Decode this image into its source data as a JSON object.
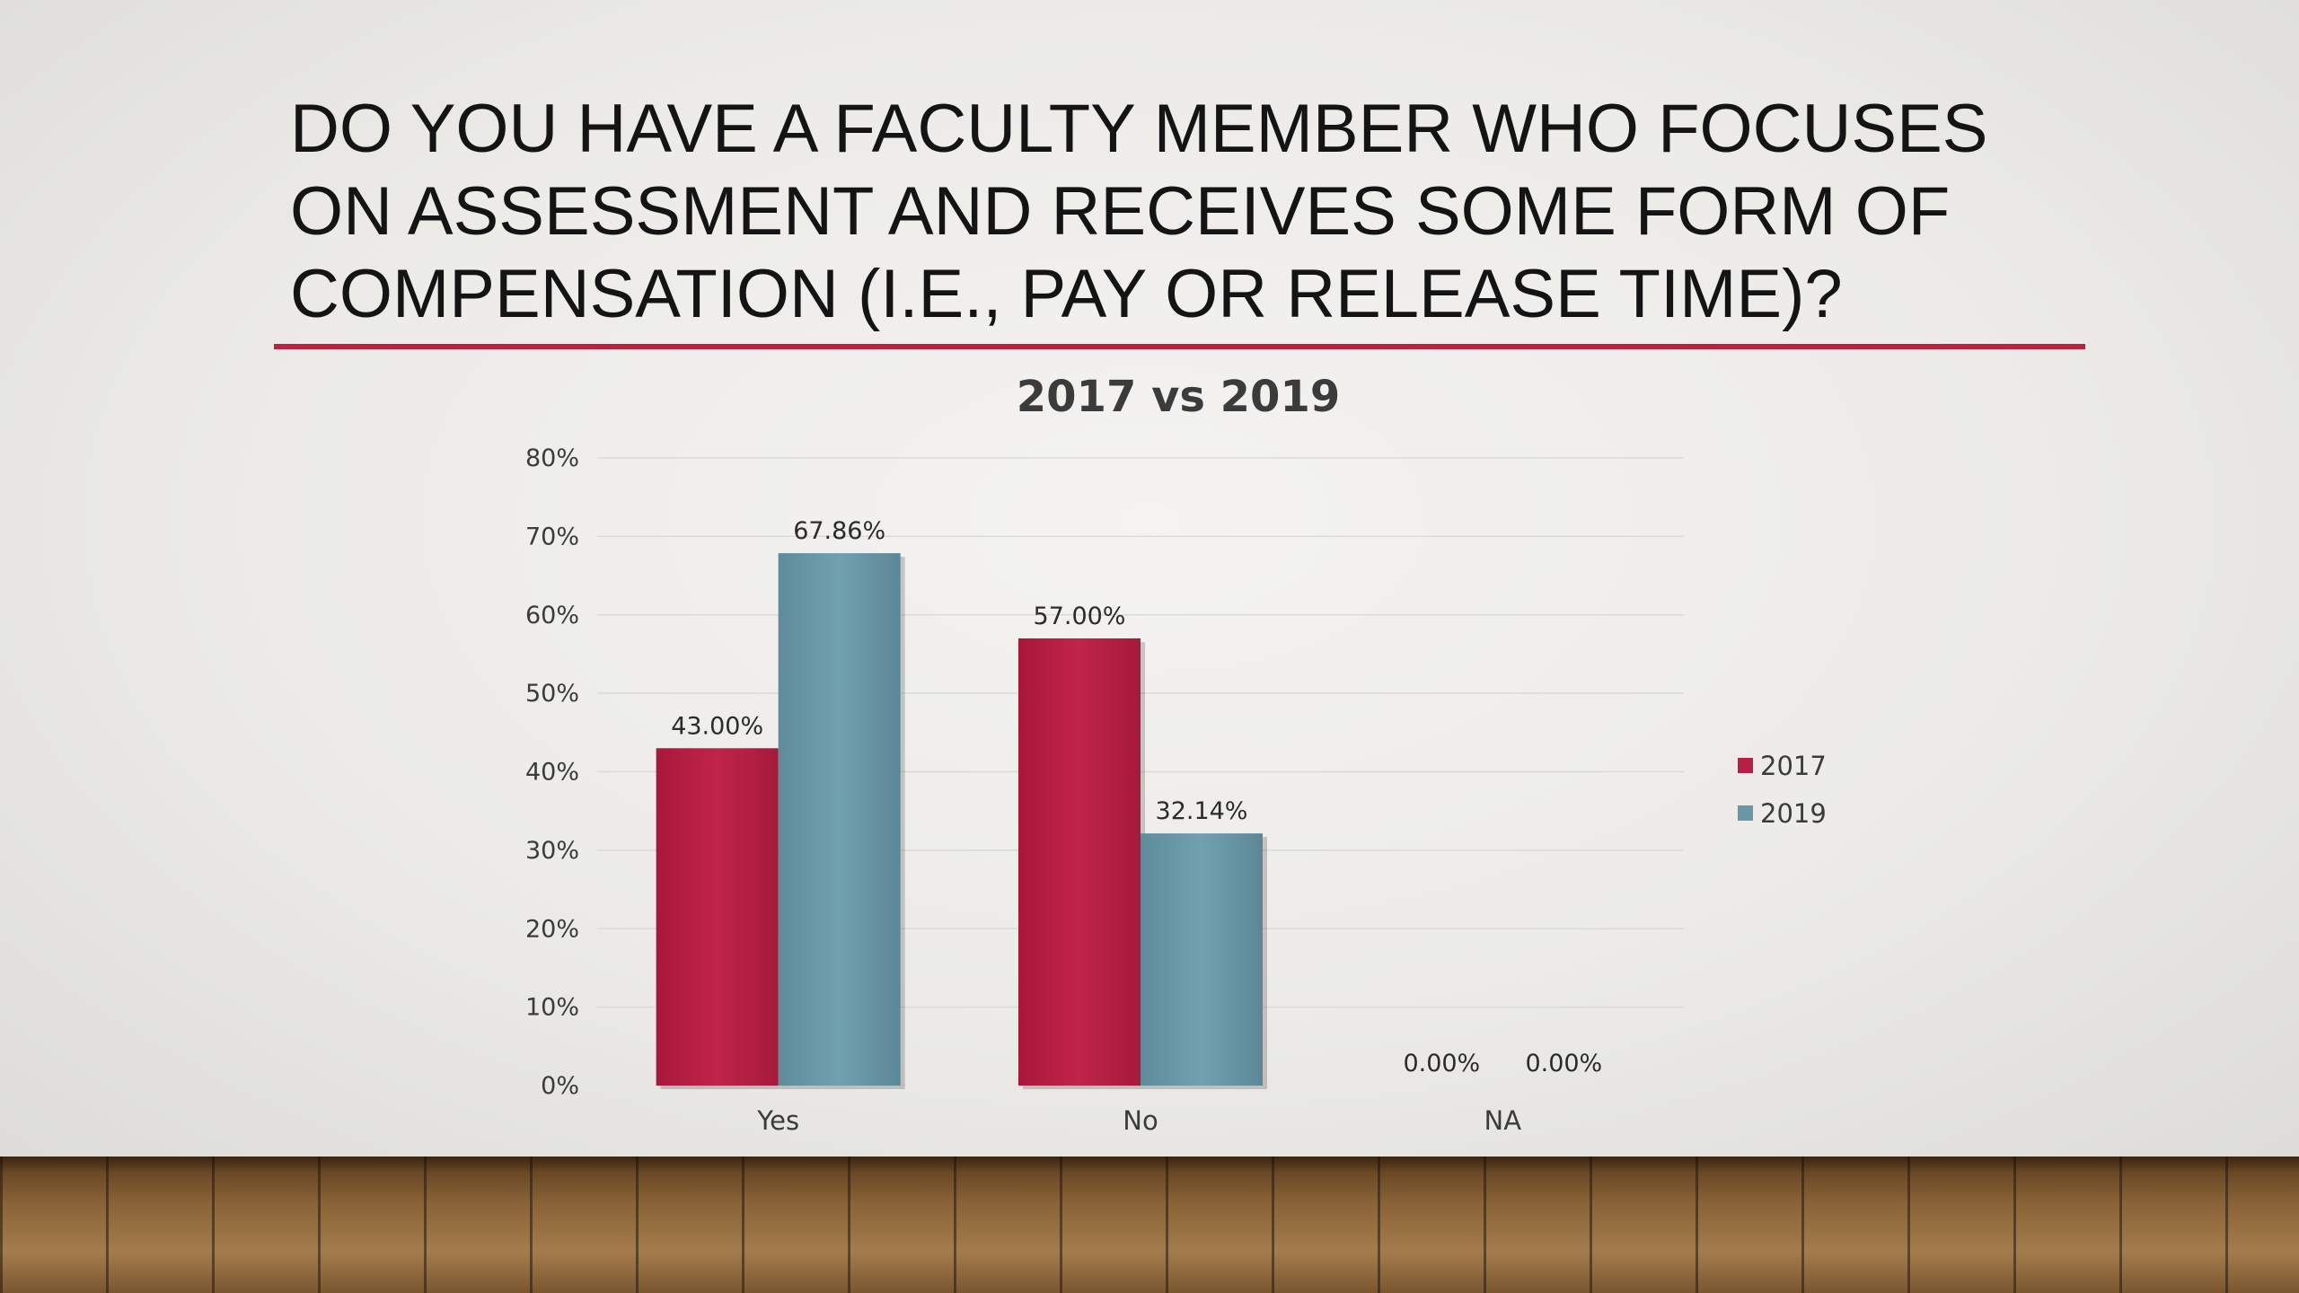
{
  "slide": {
    "title": "Do you have a faculty member who focuses on assessment and receives some form of compensation (i.e., pay or release time)?"
  },
  "colors": {
    "accent_rule": "#c0203f",
    "series_2017": "#b81f44",
    "series_2019": "#6a97a6"
  },
  "chart_data": {
    "type": "bar",
    "title": "2017 vs 2019",
    "categories": [
      "Yes",
      "No",
      "NA"
    ],
    "series": [
      {
        "name": "2017",
        "values": [
          43.0,
          57.0,
          0.0
        ],
        "labels": [
          "43.00%",
          "57.00%",
          "0.00%"
        ],
        "color": "#b81f44"
      },
      {
        "name": "2019",
        "values": [
          67.86,
          32.14,
          0.0
        ],
        "labels": [
          "67.86%",
          "32.14%",
          "0.00%"
        ],
        "color": "#6a97a6"
      }
    ],
    "ylim": [
      0,
      80
    ],
    "yticks": [
      0,
      10,
      20,
      30,
      40,
      50,
      60,
      70,
      80
    ],
    "ytick_labels": [
      "0%",
      "10%",
      "20%",
      "30%",
      "40%",
      "50%",
      "60%",
      "70%",
      "80%"
    ],
    "xlabel": "",
    "ylabel": "",
    "grid": true,
    "legend_position": "right"
  }
}
